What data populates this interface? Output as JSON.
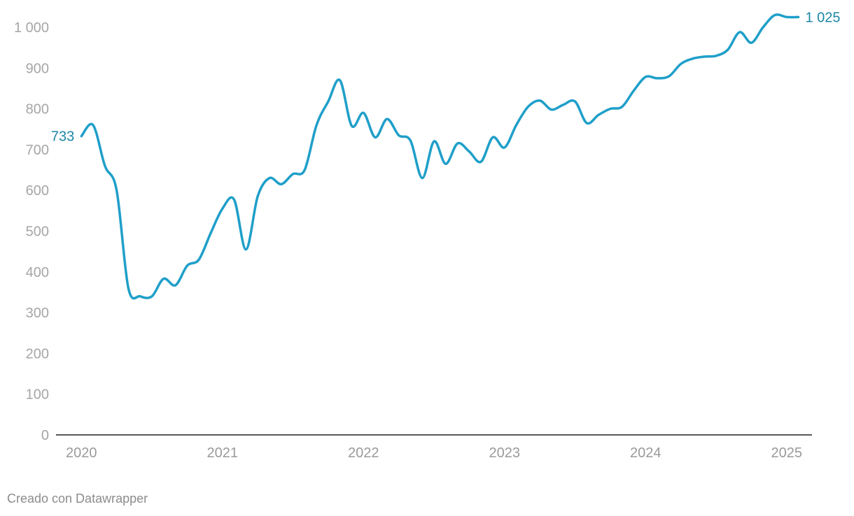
{
  "chart_data": {
    "type": "line",
    "title": "",
    "xlabel": "",
    "ylabel": "",
    "ylim": [
      0,
      1000
    ],
    "grid": false,
    "y_ticks": [
      "0",
      "100",
      "200",
      "300",
      "400",
      "500",
      "600",
      "700",
      "800",
      "900",
      "1 000"
    ],
    "y_tick_values": [
      0,
      100,
      200,
      300,
      400,
      500,
      600,
      700,
      800,
      900,
      1000
    ],
    "x_ticks": [
      "2020",
      "2021",
      "2022",
      "2023",
      "2024",
      "2025"
    ],
    "x_tick_values": [
      2020,
      2021,
      2022,
      2023,
      2024,
      2025
    ],
    "line_color": "#1f9fc9",
    "label_color": "#1b87a6",
    "start_label": "733",
    "end_label": "1 025",
    "series": [
      {
        "x": [
          2020.0,
          2020.083,
          2020.167,
          2020.25,
          2020.333,
          2020.417,
          2020.5,
          2020.583,
          2020.667,
          2020.75,
          2020.833,
          2020.917,
          2021.0,
          2021.083,
          2021.167,
          2021.25,
          2021.333,
          2021.417,
          2021.5,
          2021.583,
          2021.667,
          2021.75,
          2021.833,
          2021.917,
          2022.0,
          2022.083,
          2022.167,
          2022.25,
          2022.333,
          2022.417,
          2022.5,
          2022.583,
          2022.667,
          2022.75,
          2022.833,
          2022.917,
          2023.0,
          2023.083,
          2023.167,
          2023.25,
          2023.333,
          2023.417,
          2023.5,
          2023.583,
          2023.667,
          2023.75,
          2023.833,
          2023.917,
          2024.0,
          2024.083,
          2024.167,
          2024.25,
          2024.333,
          2024.417,
          2024.5,
          2024.583,
          2024.667,
          2024.75,
          2024.833,
          2024.917,
          2025.0,
          2025.083
        ],
        "y": [
          733,
          760,
          660,
          600,
          360,
          340,
          340,
          383,
          367,
          415,
          430,
          495,
          555,
          577,
          455,
          585,
          630,
          615,
          640,
          650,
          760,
          818,
          870,
          758,
          790,
          730,
          775,
          735,
          722,
          630,
          720,
          665,
          715,
          695,
          670,
          730,
          705,
          760,
          805,
          820,
          798,
          810,
          818,
          765,
          785,
          800,
          805,
          845,
          878,
          875,
          880,
          910,
          923,
          928,
          930,
          945,
          988,
          962,
          1000,
          1030,
          1025,
          1025
        ]
      }
    ]
  },
  "footer": {
    "credit": "Creado con Datawrapper"
  }
}
